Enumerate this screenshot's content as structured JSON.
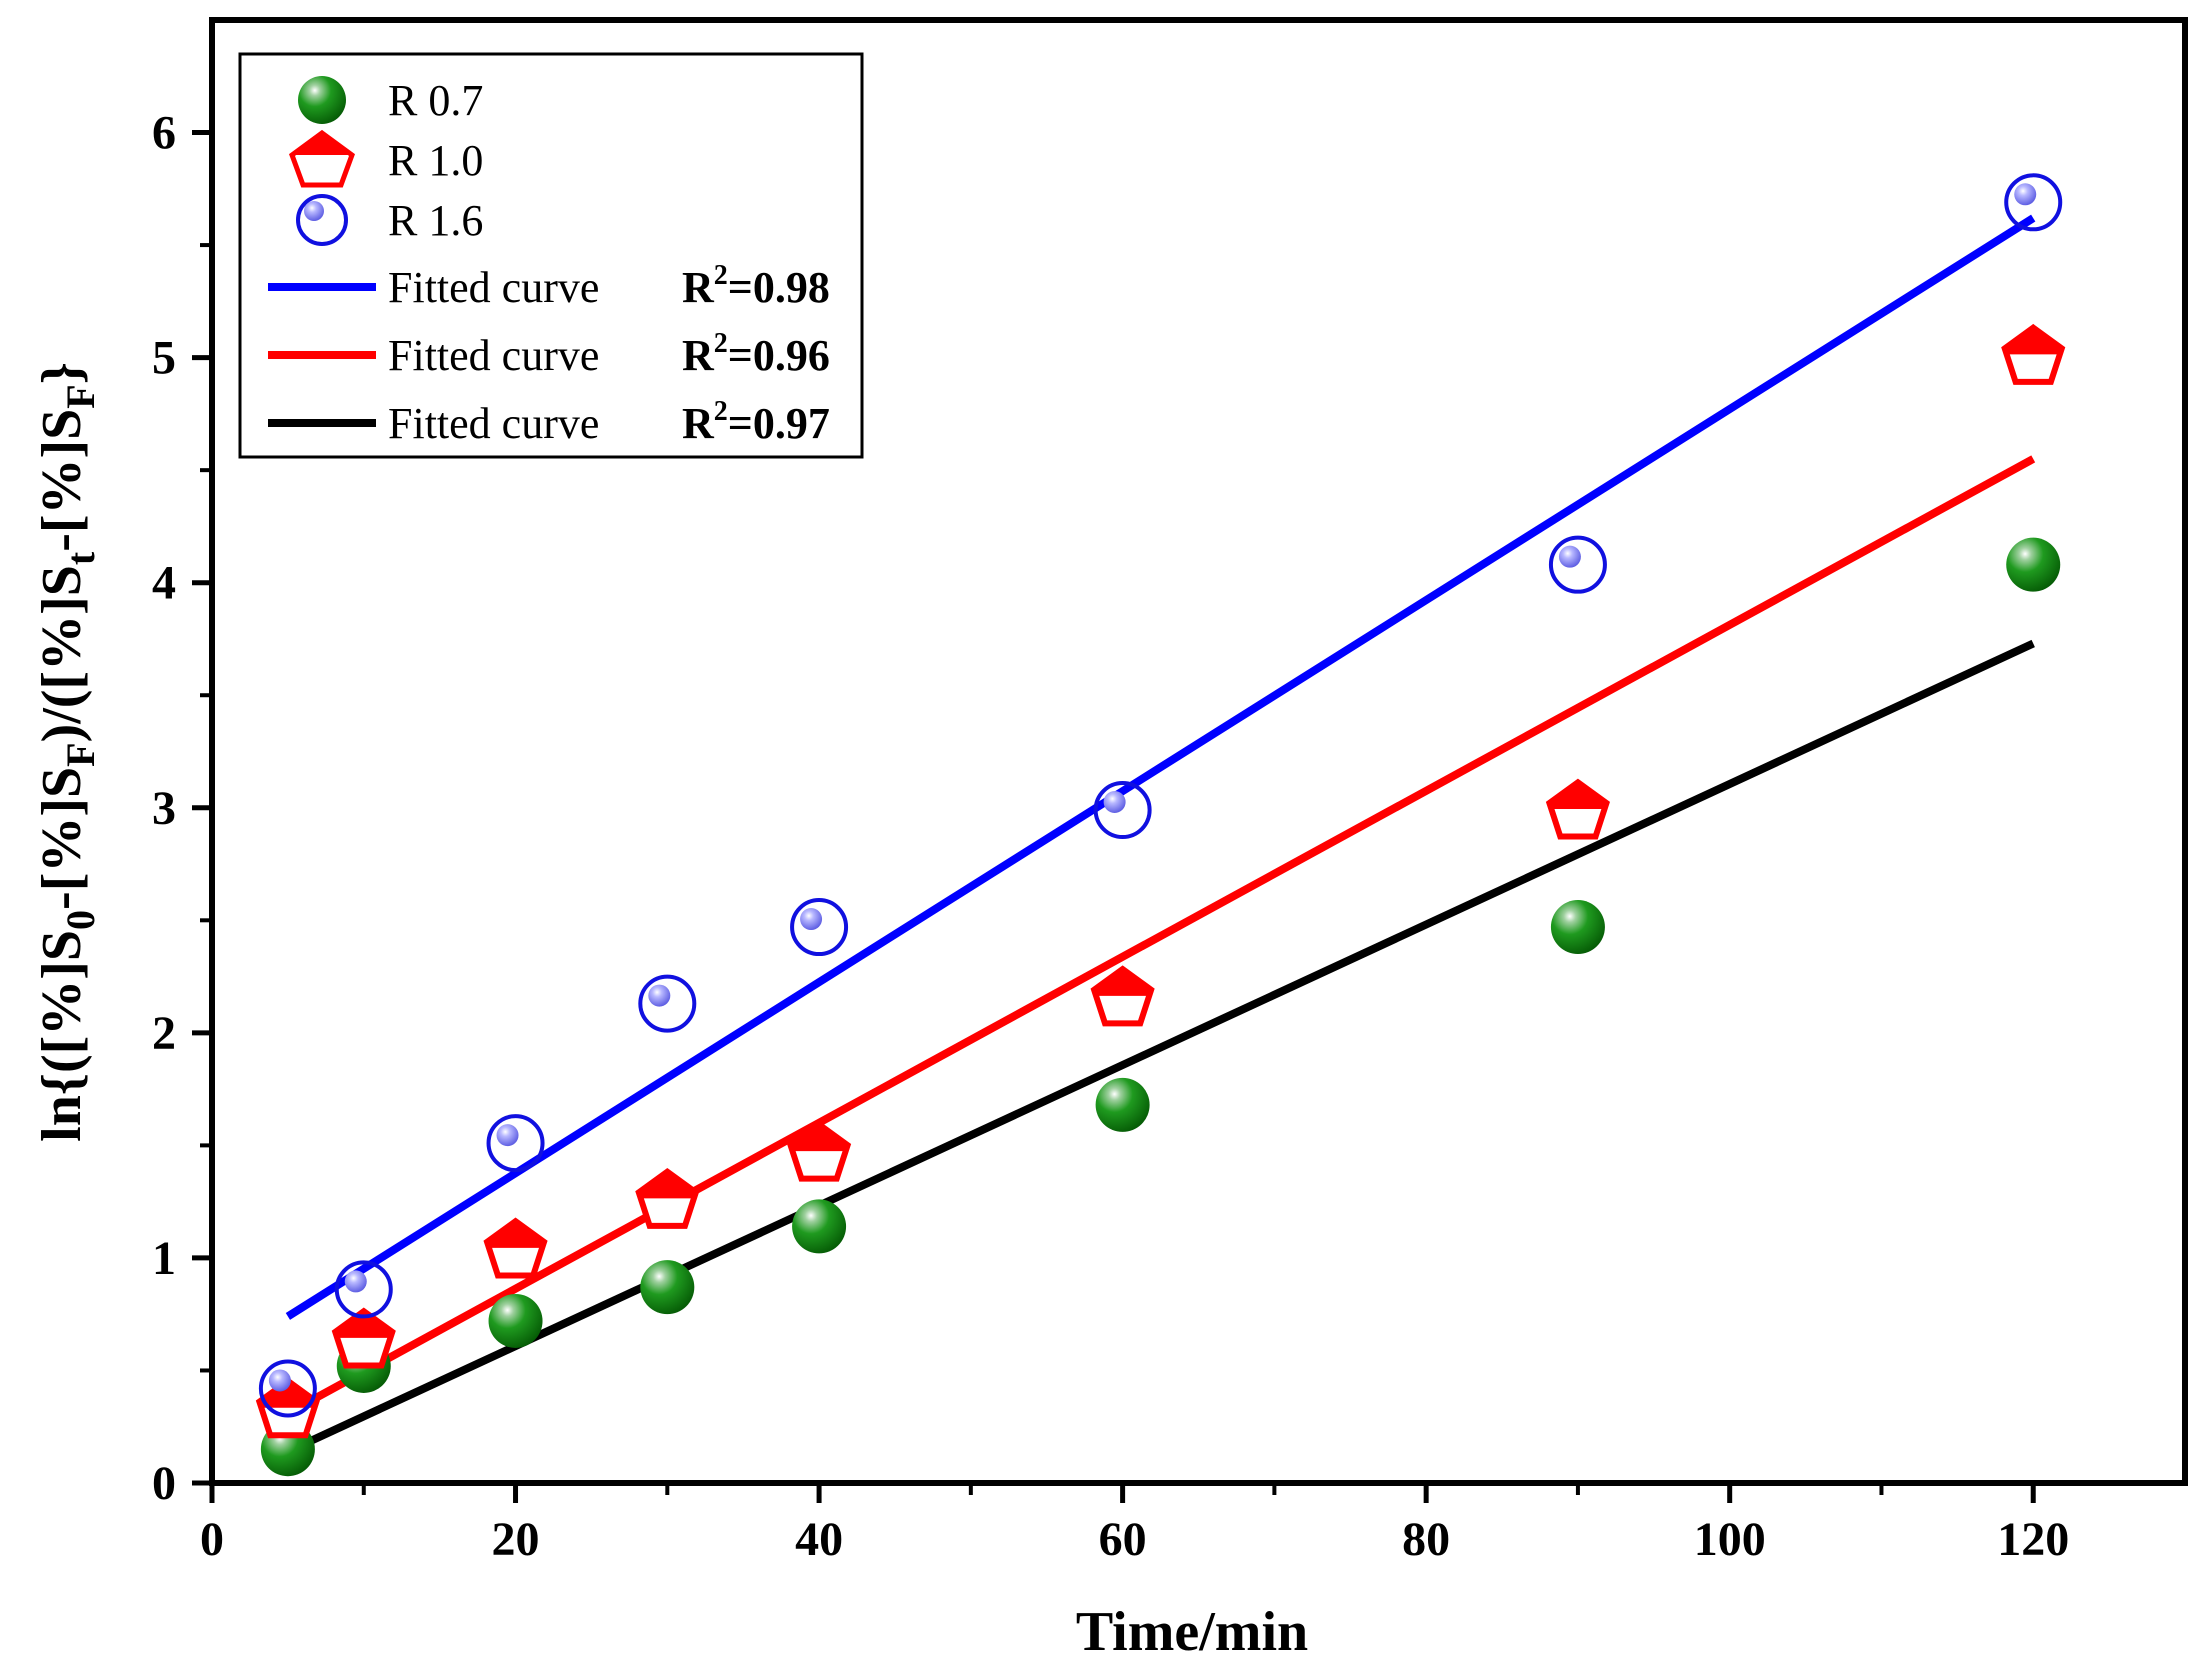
{
  "chart_data": {
    "type": "scatter",
    "xlabel": "Time/min",
    "ylabel": {
      "prefix": "ln{([%]S",
      "sub1": "0",
      "mid1": "-[%]S",
      "sub2": "F",
      "mid2": ")/([%]S",
      "sub3": "t",
      "mid3": "-[%]S",
      "sub4": "F",
      "suffix": "}"
    },
    "xlim": [
      0,
      130
    ],
    "ylim": [
      0,
      6.5
    ],
    "xticks": [
      0,
      20,
      40,
      60,
      80,
      100,
      120
    ],
    "yticks": [
      0,
      1,
      2,
      3,
      4,
      5,
      6
    ],
    "grid": false,
    "legend_position": "top-left",
    "series": [
      {
        "name": "R 0.7",
        "marker": "sphere",
        "color": "#138a13",
        "x": [
          5,
          10,
          20,
          30,
          40,
          60,
          90,
          120
        ],
        "y": [
          0.15,
          0.52,
          0.72,
          0.87,
          1.14,
          1.68,
          2.47,
          4.08
        ]
      },
      {
        "name": "R 1.0",
        "marker": "pentagon",
        "color": "#ff0000",
        "x": [
          5,
          10,
          20,
          30,
          40,
          60,
          90,
          120
        ],
        "y": [
          0.32,
          0.63,
          1.03,
          1.25,
          1.46,
          2.15,
          2.98,
          5.0
        ]
      },
      {
        "name": "R 1.6",
        "marker": "ring",
        "color": "#1010e0",
        "x": [
          5,
          10,
          20,
          30,
          40,
          60,
          90,
          120
        ],
        "y": [
          0.42,
          0.86,
          1.51,
          2.13,
          2.47,
          2.99,
          4.08,
          5.69
        ]
      }
    ],
    "fits": [
      {
        "name": "Fitted curve",
        "r2_label": "R",
        "r2_sup": "2",
        "r2_value": "=0.98",
        "color": "#0000ff",
        "x": [
          5,
          120
        ],
        "y": [
          0.74,
          5.62
        ]
      },
      {
        "name": "Fitted curve",
        "r2_label": "R",
        "r2_sup": "2",
        "r2_value": "=0.96",
        "color": "#ff0000",
        "x": [
          5,
          120
        ],
        "y": [
          0.31,
          4.55
        ]
      },
      {
        "name": "Fitted curve",
        "r2_label": "R",
        "r2_sup": "2",
        "r2_value": "=0.97",
        "color": "#000000",
        "x": [
          5,
          120
        ],
        "y": [
          0.14,
          3.73
        ]
      }
    ]
  }
}
